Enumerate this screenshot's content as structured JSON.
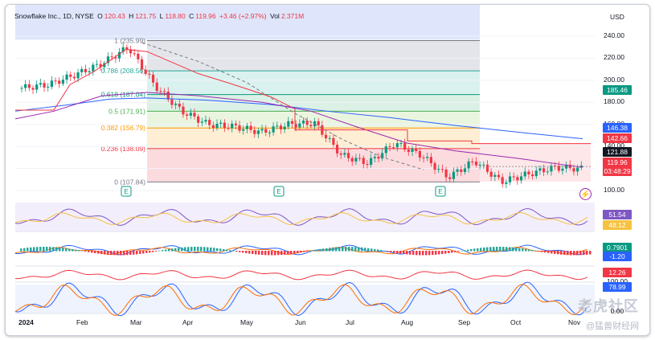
{
  "legend": {
    "symbol": "Snowflake Inc., 1D, NYSE",
    "open_label": "O",
    "open": "120.43",
    "high_label": "H",
    "high": "121.75",
    "low_label": "L",
    "low": "118.80",
    "close_label": "C",
    "close": "119.96",
    "change": "+3.46 (+2.97%)",
    "vol_label": "Vol",
    "vol": "2.371M"
  },
  "currency": "USD",
  "price_axis": [
    "240.00",
    "220.00",
    "200.00",
    "180.00",
    "160.00",
    "140.00",
    "120.00",
    "100.00"
  ],
  "price_tags": [
    {
      "text": "185.46",
      "color": "#089981"
    },
    {
      "text": "146.38",
      "color": "#2962ff"
    },
    {
      "text": "142.66",
      "color": "#f23645"
    },
    {
      "text": "121.88",
      "color": "#131722"
    },
    {
      "text": "119.96",
      "color": "#f23645"
    },
    {
      "text": "03:48:29",
      "color": "#f23645"
    },
    {
      "text": "51.54",
      "color": "#7e57c2"
    },
    {
      "text": "48.12",
      "color": "#f5c242"
    },
    {
      "text": "0.7901",
      "color": "#089981"
    },
    {
      "text": "-1.20",
      "color": "#2962ff"
    },
    {
      "text": "12.26",
      "color": "#f23645"
    },
    {
      "text": "100.00",
      "color": "#131722"
    },
    {
      "text": "78.99",
      "color": "#2962ff"
    },
    {
      "text": "0.00",
      "color": "#131722"
    }
  ],
  "fib_levels": [
    {
      "ratio": "1",
      "price": "(235.99)",
      "value": 235.99,
      "color": "#787b86"
    },
    {
      "ratio": "0.786",
      "price": "(208.56)",
      "value": 208.56,
      "color": "#26a69a"
    },
    {
      "ratio": "0.618",
      "price": "(187.04)",
      "value": 187.04,
      "color": "#089981"
    },
    {
      "ratio": "0.5",
      "price": "(171.91)",
      "value": 171.91,
      "color": "#4caf50"
    },
    {
      "ratio": "0.382",
      "price": "(156.79)",
      "value": 156.79,
      "color": "#ff9800"
    },
    {
      "ratio": "0.236",
      "price": "(138.09)",
      "value": 138.09,
      "color": "#f23645"
    },
    {
      "ratio": "0",
      "price": "(107.84)",
      "value": 107.84,
      "color": "#787b86"
    }
  ],
  "earnings_marker": "E",
  "time_axis": [
    "2024",
    "Feb",
    "Mar",
    "Apr",
    "May",
    "Jun",
    "Jul",
    "Aug",
    "Sep",
    "Oct",
    "Nov"
  ],
  "watermark": {
    "line1": "老虎社区",
    "line2": "@猛兽财经网"
  },
  "chart_data": {
    "type": "line",
    "title": "Snowflake Inc., 1D, NYSE",
    "ylim": [
      95,
      248
    ],
    "x_labels": [
      "2024",
      "Feb",
      "Mar",
      "Apr",
      "May",
      "Jun",
      "Jul",
      "Aug",
      "Sep",
      "Oct",
      "Nov"
    ],
    "close_series_points": [
      {
        "x": "Jan",
        "y": 193
      },
      {
        "x": "Jan",
        "y": 196
      },
      {
        "x": "Feb",
        "y": 205
      },
      {
        "x": "Feb",
        "y": 215
      },
      {
        "x": "Feb",
        "y": 230
      },
      {
        "x": "Mar",
        "y": 195
      },
      {
        "x": "Mar",
        "y": 172
      },
      {
        "x": "Apr",
        "y": 160
      },
      {
        "x": "Apr",
        "y": 158
      },
      {
        "x": "May",
        "y": 153
      },
      {
        "x": "May",
        "y": 160
      },
      {
        "x": "May",
        "y": 161
      },
      {
        "x": "Jun",
        "y": 132
      },
      {
        "x": "Jun",
        "y": 125
      },
      {
        "x": "Jul",
        "y": 143
      },
      {
        "x": "Jul",
        "y": 132
      },
      {
        "x": "Aug",
        "y": 112
      },
      {
        "x": "Aug",
        "y": 127
      },
      {
        "x": "Sep",
        "y": 108
      },
      {
        "x": "Oct",
        "y": 115
      },
      {
        "x": "Oct",
        "y": 121
      },
      {
        "x": "Nov",
        "y": 119.96
      }
    ]
  }
}
